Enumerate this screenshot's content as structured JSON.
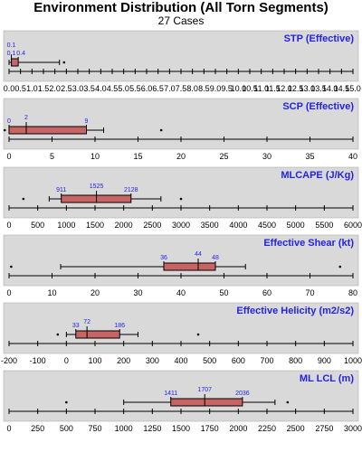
{
  "header": {
    "title": "Environment Distribution (All Torn Segments)",
    "subtitle": "27 Cases"
  },
  "colors": {
    "panel_bg": "#d9d9d9",
    "box_fill": "#c86464",
    "title_text": "#2323e6",
    "stat_label": "#2323e6",
    "ink": "#000000"
  },
  "chart_data": [
    {
      "type": "boxplot",
      "title": "STP (Effective)",
      "xlim": [
        0,
        15
      ],
      "ticks": [
        0.0,
        0.5,
        1.0,
        1.5,
        2.0,
        2.5,
        3.0,
        3.5,
        4.0,
        4.5,
        5.0,
        5.5,
        6.0,
        6.5,
        7.0,
        7.5,
        8.0,
        8.5,
        9.0,
        9.5,
        10.0,
        10.5,
        11.0,
        11.5,
        12.0,
        12.5,
        13.0,
        13.5,
        14.0,
        14.5,
        15.0
      ],
      "tick_decimals": 1,
      "whisker_low": 0.0,
      "q1": 0.1,
      "median": 0.1,
      "q3": 0.4,
      "whisker_high": 2.2,
      "outliers": [
        2.4
      ],
      "labels": {
        "q1": "0.1",
        "median": "0.1",
        "q3": "0.4"
      }
    },
    {
      "type": "boxplot",
      "title": "SCP (Effective)",
      "xlim": [
        0,
        40
      ],
      "ticks": [
        0,
        5,
        10,
        15,
        20,
        25,
        30,
        35,
        40
      ],
      "tick_decimals": 0,
      "whisker_low": 0,
      "q1": 0,
      "median": 2,
      "q3": 9,
      "whisker_high": 11,
      "outliers": [
        -0.5,
        17.7
      ],
      "labels": {
        "q1": "0",
        "median": "2",
        "q3": "9"
      }
    },
    {
      "type": "boxplot",
      "title": "MLCAPE (J/Kg)",
      "xlim": [
        0,
        6000
      ],
      "ticks": [
        0,
        500,
        1000,
        1500,
        2000,
        2500,
        3000,
        3500,
        4000,
        4500,
        5000,
        5500,
        6000
      ],
      "tick_decimals": 0,
      "whisker_low": 700,
      "q1": 911,
      "median": 1525,
      "q3": 2128,
      "whisker_high": 2650,
      "outliers": [
        250,
        3000
      ],
      "labels": {
        "q1": "911",
        "median": "1525",
        "q3": "2128"
      }
    },
    {
      "type": "boxplot",
      "title": "Effective Shear (kt)",
      "xlim": [
        0,
        80
      ],
      "ticks": [
        0,
        10,
        20,
        30,
        40,
        50,
        60,
        70,
        80
      ],
      "tick_decimals": 0,
      "whisker_low": 12,
      "q1": 36,
      "median": 44,
      "q3": 48,
      "whisker_high": 55,
      "outliers": [
        0.5,
        77
      ],
      "labels": {
        "q1": "36",
        "median": "44",
        "q3": "48"
      }
    },
    {
      "type": "boxplot",
      "title": "Effective Helicity (m2/s2)",
      "xlim": [
        -200,
        1000
      ],
      "ticks": [
        -200,
        -100,
        0,
        100,
        200,
        300,
        400,
        500,
        600,
        700,
        800,
        900,
        1000
      ],
      "tick_decimals": 0,
      "whisker_low": 0,
      "q1": 33,
      "median": 72,
      "q3": 186,
      "whisker_high": 250,
      "outliers": [
        -30,
        460
      ],
      "labels": {
        "q1": "33",
        "median": "72",
        "q3": "186"
      }
    },
    {
      "type": "boxplot",
      "title": "ML LCL (m)",
      "xlim": [
        0,
        3000
      ],
      "ticks": [
        0,
        250,
        500,
        750,
        1000,
        1250,
        1500,
        1750,
        2000,
        2250,
        2500,
        2750,
        3000
      ],
      "tick_decimals": 0,
      "whisker_low": 1000,
      "q1": 1411,
      "median": 1707,
      "q3": 2036,
      "whisker_high": 2320,
      "outliers": [
        500,
        2430
      ],
      "labels": {
        "q1": "1411",
        "median": "1707",
        "q3": "2036"
      }
    }
  ]
}
